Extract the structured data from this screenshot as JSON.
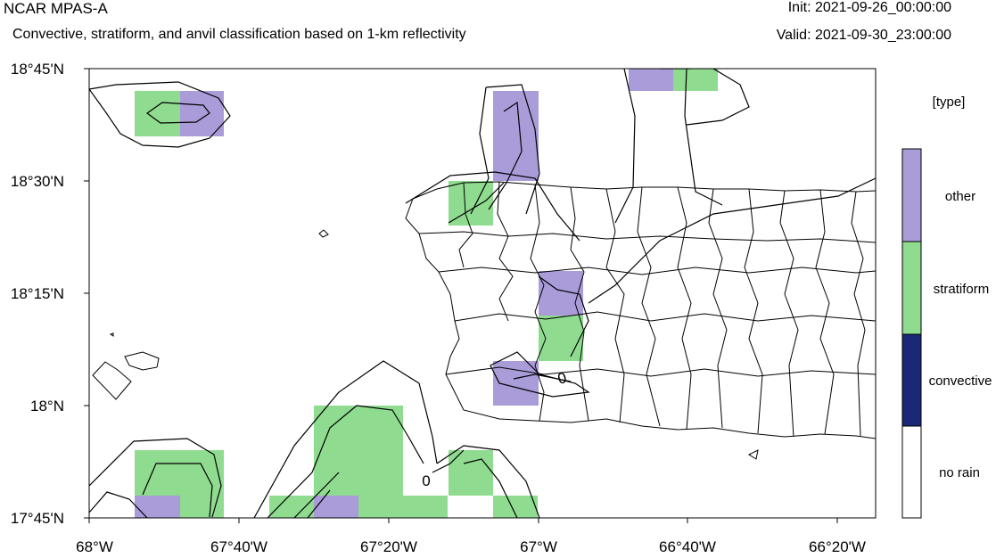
{
  "header": {
    "title": "NCAR MPAS-A",
    "subtitle": "Convective, stratiform, and anvil classification based on 1-km reflectivity",
    "init": "Init: 2021-09-26_00:00:00",
    "valid": "Valid: 2021-09-30_23:00:00"
  },
  "map": {
    "lat_labels": [
      "18°45'N",
      "18°30'N",
      "18°15'N",
      "18°N",
      "17°45'N"
    ],
    "lon_labels": [
      "68°W",
      "67°40'W",
      "67°20'W",
      "67°W",
      "66°40'W",
      "66°20'W"
    ],
    "contour_labels": [
      "0",
      "0"
    ]
  },
  "legend": {
    "title": "[type]",
    "items": [
      {
        "label": "other",
        "color": "#a99cd8"
      },
      {
        "label": "stratiform",
        "color": "#8fdb8f"
      },
      {
        "label": "convective",
        "color": "#1a2877"
      },
      {
        "label": "no rain",
        "color": "#ffffff"
      }
    ]
  }
}
